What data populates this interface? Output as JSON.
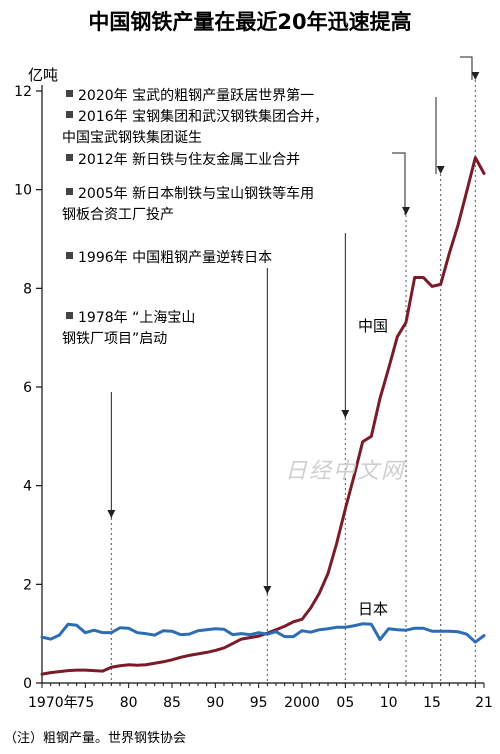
{
  "chart_data": {
    "type": "line",
    "title": "中国钢铁产量在最近20年迅速提高",
    "ylabel": "亿吨",
    "ylim": [
      0,
      12
    ],
    "xlim": [
      1970,
      2021
    ],
    "grid": false,
    "x_tick_labels": [
      "1970年",
      "75",
      "80",
      "85",
      "90",
      "95",
      "2000",
      "05",
      "10",
      "15",
      "21"
    ],
    "y_tick_labels": [
      "0",
      "2",
      "4",
      "6",
      "8",
      "10",
      "12"
    ],
    "series": [
      {
        "name": "中国",
        "color": "#7a1c28",
        "x": [
          1970,
          1971,
          1972,
          1973,
          1974,
          1975,
          1976,
          1977,
          1978,
          1979,
          1980,
          1981,
          1982,
          1983,
          1984,
          1985,
          1986,
          1987,
          1988,
          1989,
          1990,
          1991,
          1992,
          1993,
          1994,
          1995,
          1996,
          1997,
          1998,
          1999,
          2000,
          2001,
          2002,
          2003,
          2004,
          2005,
          2006,
          2007,
          2008,
          2009,
          2010,
          2011,
          2012,
          2013,
          2014,
          2015,
          2016,
          2017,
          2018,
          2019,
          2020,
          2021
        ],
        "values": [
          0.18,
          0.21,
          0.23,
          0.25,
          0.26,
          0.26,
          0.25,
          0.24,
          0.32,
          0.35,
          0.37,
          0.36,
          0.37,
          0.4,
          0.43,
          0.47,
          0.52,
          0.56,
          0.59,
          0.62,
          0.66,
          0.71,
          0.8,
          0.89,
          0.92,
          0.95,
          1.01,
          1.08,
          1.15,
          1.24,
          1.29,
          1.52,
          1.82,
          2.22,
          2.83,
          3.53,
          4.19,
          4.89,
          5.0,
          5.77,
          6.38,
          7.02,
          7.31,
          8.22,
          8.22,
          8.04,
          8.08,
          8.71,
          9.28,
          9.96,
          10.65,
          10.33
        ]
      },
      {
        "name": "日本",
        "color": "#2c6db4",
        "x": [
          1970,
          1971,
          1972,
          1973,
          1974,
          1975,
          1976,
          1977,
          1978,
          1979,
          1980,
          1981,
          1982,
          1983,
          1984,
          1985,
          1986,
          1987,
          1988,
          1989,
          1990,
          1991,
          1992,
          1993,
          1994,
          1995,
          1996,
          1997,
          1998,
          1999,
          2000,
          2001,
          2002,
          2003,
          2004,
          2005,
          2006,
          2007,
          2008,
          2009,
          2010,
          2011,
          2012,
          2013,
          2014,
          2015,
          2016,
          2017,
          2018,
          2019,
          2020,
          2021
        ],
        "values": [
          0.93,
          0.89,
          0.97,
          1.19,
          1.17,
          1.02,
          1.07,
          1.02,
          1.02,
          1.12,
          1.11,
          1.02,
          1.0,
          0.97,
          1.06,
          1.05,
          0.98,
          0.99,
          1.06,
          1.08,
          1.1,
          1.09,
          0.98,
          1.0,
          0.98,
          1.02,
          0.99,
          1.04,
          0.94,
          0.94,
          1.06,
          1.03,
          1.08,
          1.1,
          1.13,
          1.13,
          1.16,
          1.2,
          1.19,
          0.88,
          1.1,
          1.08,
          1.07,
          1.11,
          1.11,
          1.05,
          1.05,
          1.05,
          1.04,
          0.99,
          0.83,
          0.96
        ]
      }
    ],
    "event_lines": [
      {
        "year": 1978,
        "label": "1978年 “上海宝山钢铁厂项目”启动"
      },
      {
        "year": 1996,
        "label": "1996年 中国粗钢产量逆转日本"
      },
      {
        "year": 2005,
        "label": "2005年 新日本制铁与宝山钢铁等车用钢板合资工厂投产"
      },
      {
        "year": 2012,
        "label": "2012年 新日铁与住友金属工业合并"
      },
      {
        "year": 2016,
        "label": "2016年 宝钢集团和武汉钢铁集团合并，中国宝武钢铁集团诞生"
      },
      {
        "year": 2020,
        "label": "2020年 宝武的粗钢产量跃居世界第一"
      }
    ]
  },
  "annotations": [
    {
      "lines": [
        "2020年  宝武的粗钢产量跃居世界第一"
      ]
    },
    {
      "lines": [
        "2016年  宝钢集团和武汉钢铁集团合并，",
        "中国宝武钢铁集团诞生"
      ]
    },
    {
      "lines": [
        "2012年  新日铁与住友金属工业合并"
      ]
    },
    {
      "lines": [
        "2005年  新日本制铁与宝山钢铁等车用",
        "钢板合资工厂投产"
      ]
    },
    {
      "lines": [
        "1996年  中国粗钢产量逆转日本"
      ]
    },
    {
      "lines": [
        "1978年  “上海宝山",
        "钢铁厂项目”启动"
      ]
    }
  ],
  "series_labels": {
    "china": "中国",
    "japan": "日本"
  },
  "note": "（注）粗钢产量。世界钢铁协会",
  "watermark": "日经中文网"
}
